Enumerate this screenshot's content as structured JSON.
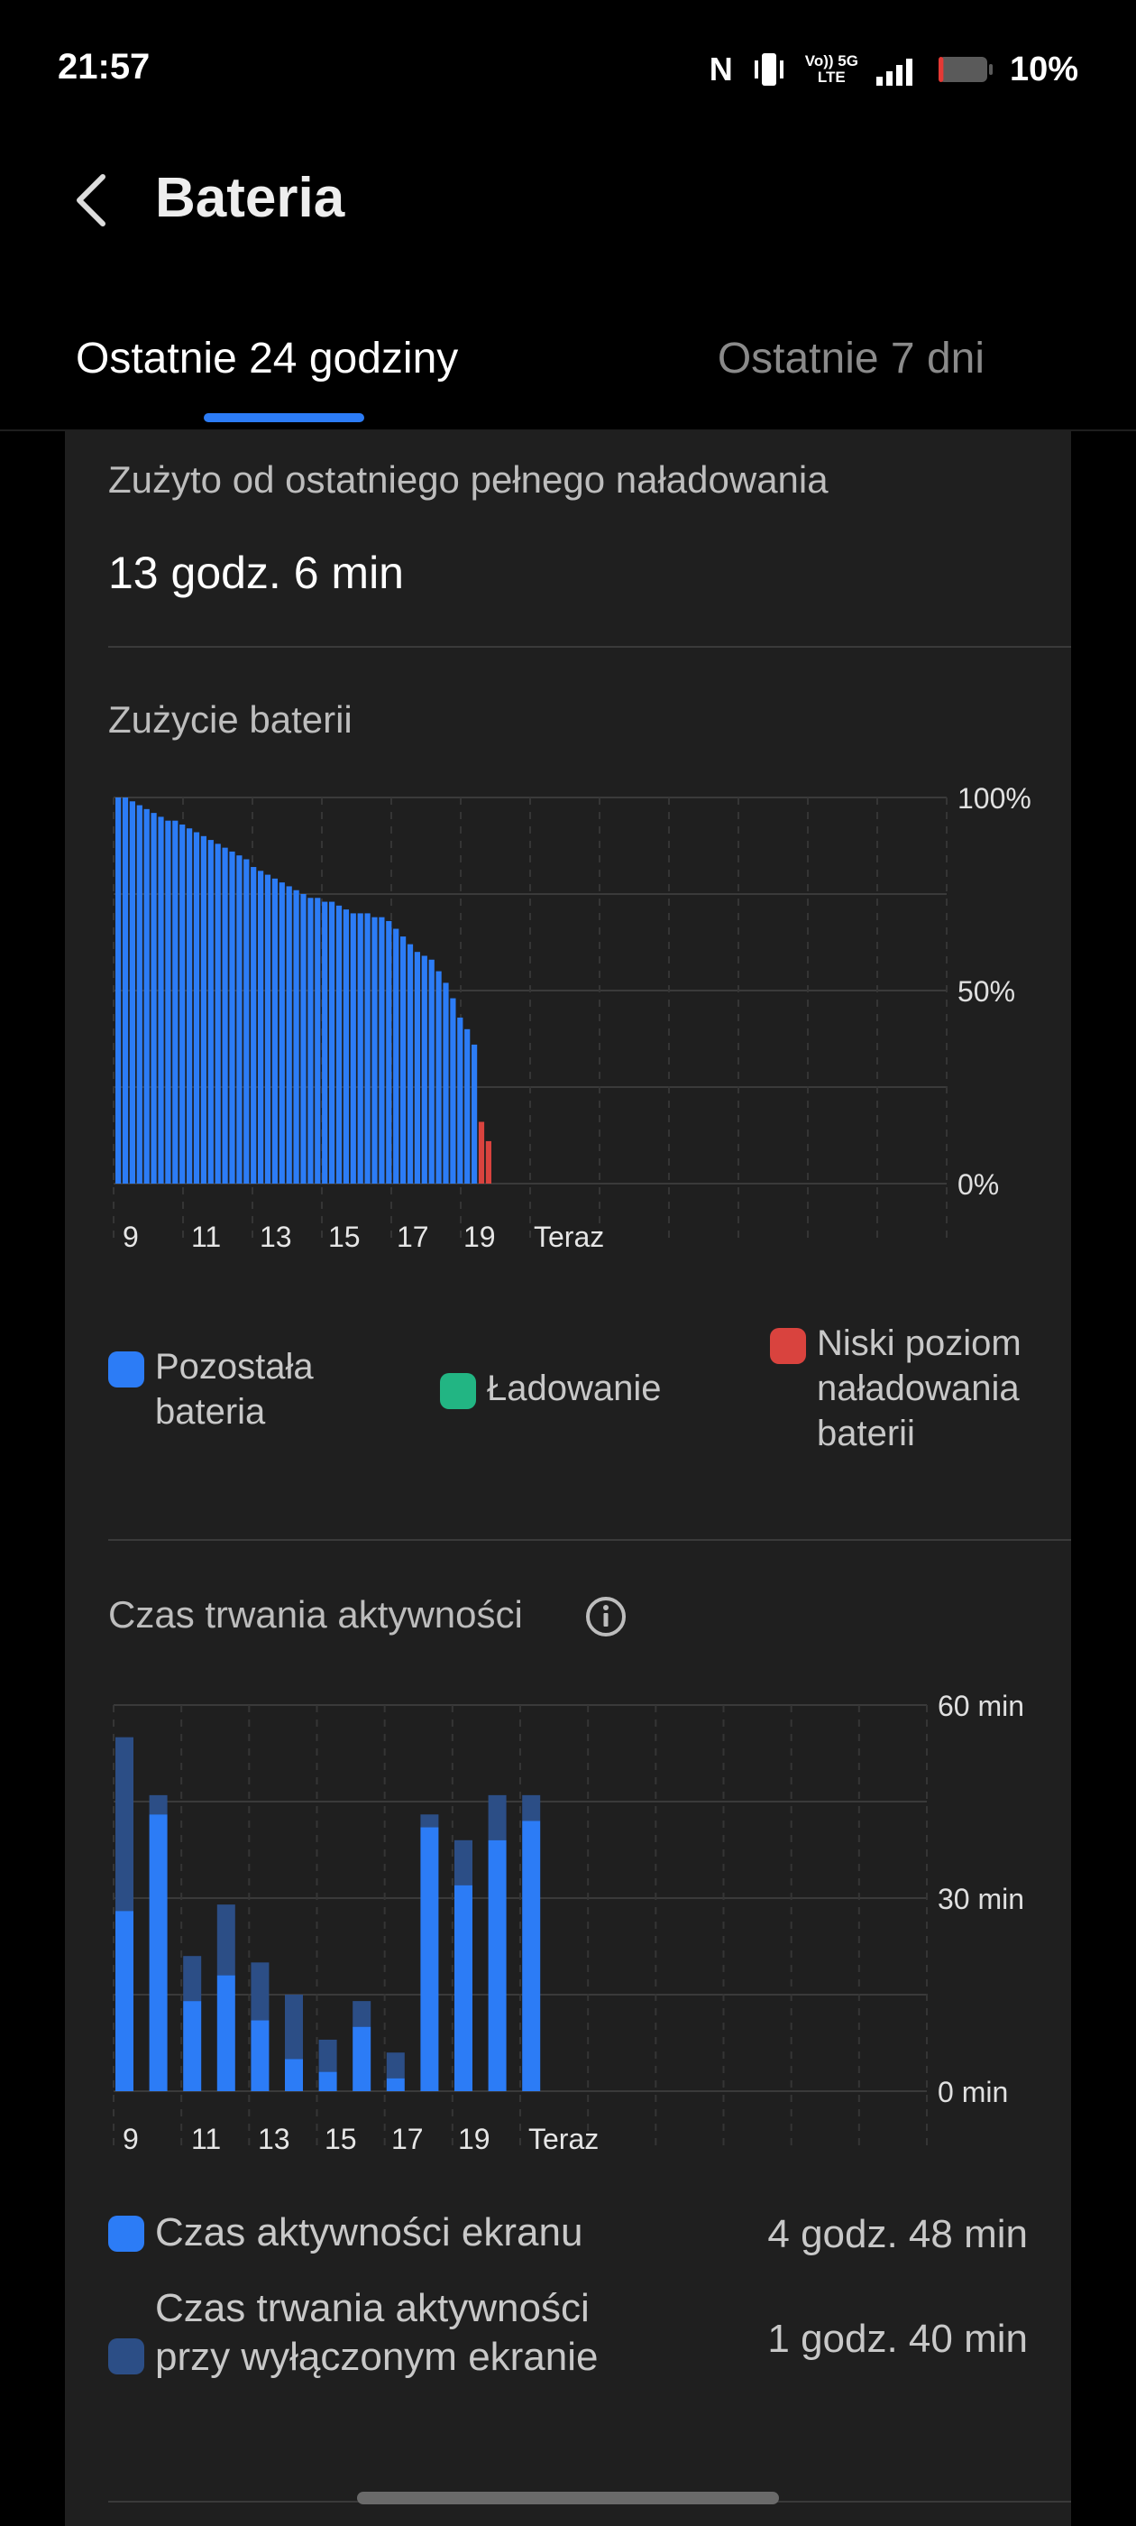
{
  "status_bar": {
    "time": "21:57",
    "nfc_icon": "N",
    "network_top": "Vo)) 5G",
    "network_bottom": "LTE",
    "battery_percent": "10%",
    "battery_level": 0.1,
    "battery_color": "#e53935"
  },
  "header": {
    "back_icon": "chevron-left-icon",
    "title": "Bateria"
  },
  "tabs": [
    {
      "label": "Ostatnie 24 godziny",
      "active": true
    },
    {
      "label": "Ostatnie 7 dni",
      "active": false
    }
  ],
  "usage": {
    "label": "Zużyto od ostatniego pełnego naładowania",
    "value": "13 godz. 6 min"
  },
  "battery_chart_title": "Zużycie baterii",
  "activity_chart_title": "Czas trwania aktywności",
  "colors": {
    "accent": "#2c7cf6",
    "screen_off": "#2c4e86",
    "charging": "#22b583",
    "low": "#d9433e",
    "grid": "#3a3a3a"
  },
  "battery_legend": [
    {
      "label": "Pozostała bateria",
      "color": "#2c7cf6"
    },
    {
      "label": "Ładowanie",
      "color": "#22b583"
    },
    {
      "label": "Niski poziom naładowania baterii",
      "color": "#d9433e"
    }
  ],
  "activity_legend": [
    {
      "label": "Czas aktywności ekranu",
      "value": "4 godz. 48 min",
      "color": "#2c7cf6"
    },
    {
      "label": "Czas trwania aktywności przy wyłączonym ekranie",
      "value": "1 godz. 40 min",
      "color": "#2c4e86"
    }
  ],
  "chart_data": [
    {
      "type": "bar",
      "title": "Zużycie baterii",
      "x_tick_labels": [
        "9",
        "11",
        "13",
        "15",
        "17",
        "19",
        "Teraz"
      ],
      "y_tick_labels": [
        "100%",
        "50%",
        "0%"
      ],
      "ylim": [
        0,
        100
      ],
      "low_threshold": 20,
      "series": [
        {
          "name": "Pozostała bateria",
          "values": [
            100,
            100,
            99,
            98,
            97,
            96,
            95,
            94,
            94,
            93,
            92,
            91,
            90,
            89,
            88,
            87,
            86,
            85,
            84,
            82,
            81,
            80,
            79,
            78,
            77,
            76,
            75,
            74,
            74,
            73,
            73,
            72,
            71,
            70,
            70,
            70,
            69,
            69,
            68,
            66,
            64,
            62,
            60,
            59,
            58,
            55,
            52,
            48,
            43,
            40,
            36
          ]
        },
        {
          "name": "Niski poziom naładowania baterii",
          "values": [
            16,
            11
          ]
        }
      ]
    },
    {
      "type": "bar",
      "title": "Czas trwania aktywności",
      "x_tick_labels": [
        "9",
        "11",
        "13",
        "15",
        "17",
        "19",
        "Teraz"
      ],
      "y_tick_labels": [
        "60 min",
        "30 min",
        "0 min"
      ],
      "ylim": [
        0,
        60
      ],
      "series": [
        {
          "name": "Czas aktywności ekranu",
          "values": [
            28,
            43,
            14,
            18,
            11,
            5,
            3,
            10,
            2,
            41,
            32,
            39,
            42
          ]
        },
        {
          "name": "Czas trwania aktywności przy wyłączonym ekranie",
          "values": [
            27,
            3,
            7,
            11,
            9,
            10,
            5,
            4,
            4,
            2,
            7,
            7,
            4
          ]
        }
      ]
    }
  ]
}
